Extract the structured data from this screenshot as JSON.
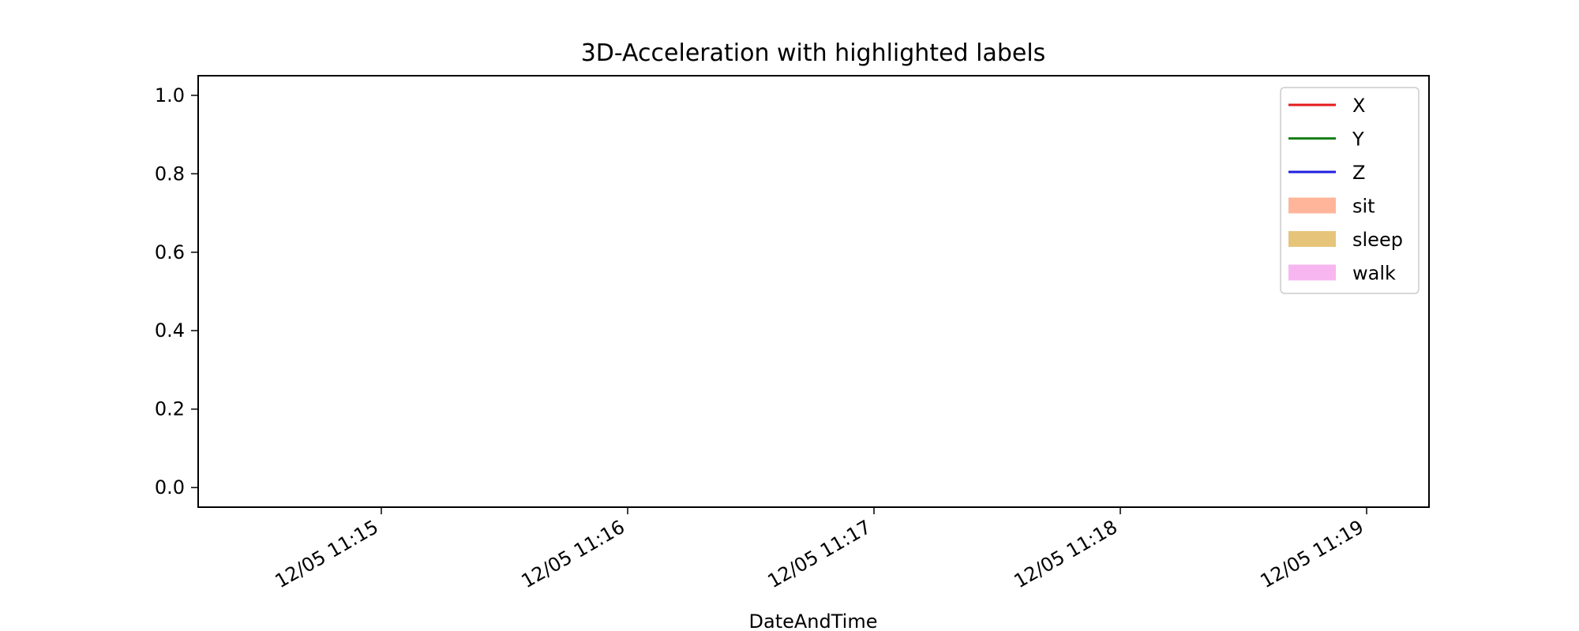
{
  "chart_data": {
    "type": "line",
    "title": "3D-Acceleration with highlighted labels",
    "xlabel": "DateAndTime",
    "ylabel": "",
    "x_ticks": [
      "12/05 11:15",
      "12/05 11:16",
      "12/05 11:17",
      "12/05 11:18",
      "12/05 11:19"
    ],
    "y_ticks": [
      "0.0",
      "0.2",
      "0.4",
      "0.6",
      "0.8",
      "1.0"
    ],
    "ylim": [
      -0.05,
      1.05
    ],
    "grid": false,
    "legend_position": "top-right",
    "series": [
      {
        "name": "X",
        "color": "#e41a1c",
        "values": []
      },
      {
        "name": "Y",
        "color": "#1a7f1a",
        "values": []
      },
      {
        "name": "Z",
        "color": "#1f1fe0",
        "values": []
      }
    ],
    "highlight_labels": [
      {
        "name": "sit",
        "color": "#ffb59a"
      },
      {
        "name": "sleep",
        "color": "#e6c57a"
      },
      {
        "name": "walk",
        "color": "#f7b6f0"
      }
    ]
  }
}
